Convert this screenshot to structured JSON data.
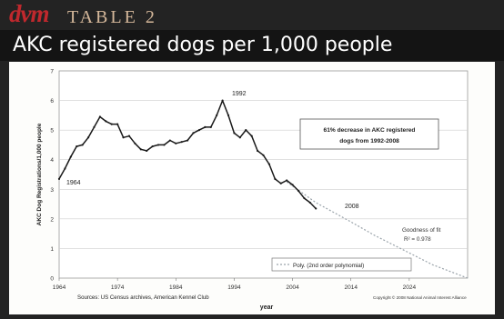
{
  "header": {
    "brand": "dvm",
    "table_label": "Table 2",
    "title": "AKC registered dogs per 1,000 people"
  },
  "chart_data": {
    "type": "line",
    "title": "AKC registered dogs per 1,000 people",
    "xlabel": "year",
    "ylabel": "AKC Dog Registrations/1,000 people",
    "xlim": [
      1964,
      2034
    ],
    "ylim": [
      0,
      7
    ],
    "xticks": [
      1964,
      1974,
      1984,
      1994,
      2004,
      2014,
      2024
    ],
    "yticks": [
      0,
      1,
      2,
      3,
      4,
      5,
      6,
      7
    ],
    "grid": true,
    "series": [
      {
        "values_x": [
          1964,
          1965,
          1966,
          1967,
          1968,
          1969,
          1970,
          1971,
          1972,
          1973,
          1974,
          1975,
          1976,
          1977,
          1978,
          1979,
          1980,
          1981,
          1982,
          1983,
          1984,
          1985,
          1986,
          1987,
          1988,
          1989,
          1990,
          1991,
          1992,
          1993,
          1994,
          1995,
          1996,
          1997,
          1998,
          1999,
          2000,
          2001,
          2002,
          2003,
          2004,
          2005,
          2006,
          2007,
          2008
        ],
        "values_y": [
          3.35,
          3.7,
          4.1,
          4.45,
          4.5,
          4.75,
          5.1,
          5.45,
          5.3,
          5.2,
          5.2,
          4.75,
          4.8,
          4.55,
          4.35,
          4.3,
          4.45,
          4.5,
          4.5,
          4.65,
          4.55,
          4.6,
          4.65,
          4.9,
          5.0,
          5.1,
          5.1,
          5.5,
          6.0,
          5.5,
          4.9,
          4.75,
          5.0,
          4.8,
          4.3,
          4.15,
          3.85,
          3.35,
          3.2,
          3.3,
          3.15,
          2.95,
          2.7,
          2.55,
          2.35
        ]
      },
      {
        "name": "Poly. (2nd order polynomial)",
        "style": "dotted",
        "values_x": [
          2003,
          2008,
          2014,
          2018,
          2024,
          2028,
          2034
        ],
        "values_y": [
          3.25,
          2.55,
          1.9,
          1.45,
          0.85,
          0.45,
          0.0
        ]
      }
    ],
    "annotations": {
      "label_1964": "1964",
      "label_1992": "1992",
      "label_2008": "2008",
      "callout": [
        "61% decrease in AKC registered",
        "dogs from 1992-2008"
      ],
      "fit": [
        "Goodness of fit",
        "R² = 0.978"
      ],
      "legend": "Poly. (2nd order polynomial)",
      "sources": "Sources: US Census archives, American Kennel Club",
      "copyright": "Copyright © 2008 National Animal Interest Alliance"
    },
    "colors": {
      "line": "#1a1a1a",
      "trend": "#9aa3aa",
      "grid": "#cfcfcf"
    }
  }
}
